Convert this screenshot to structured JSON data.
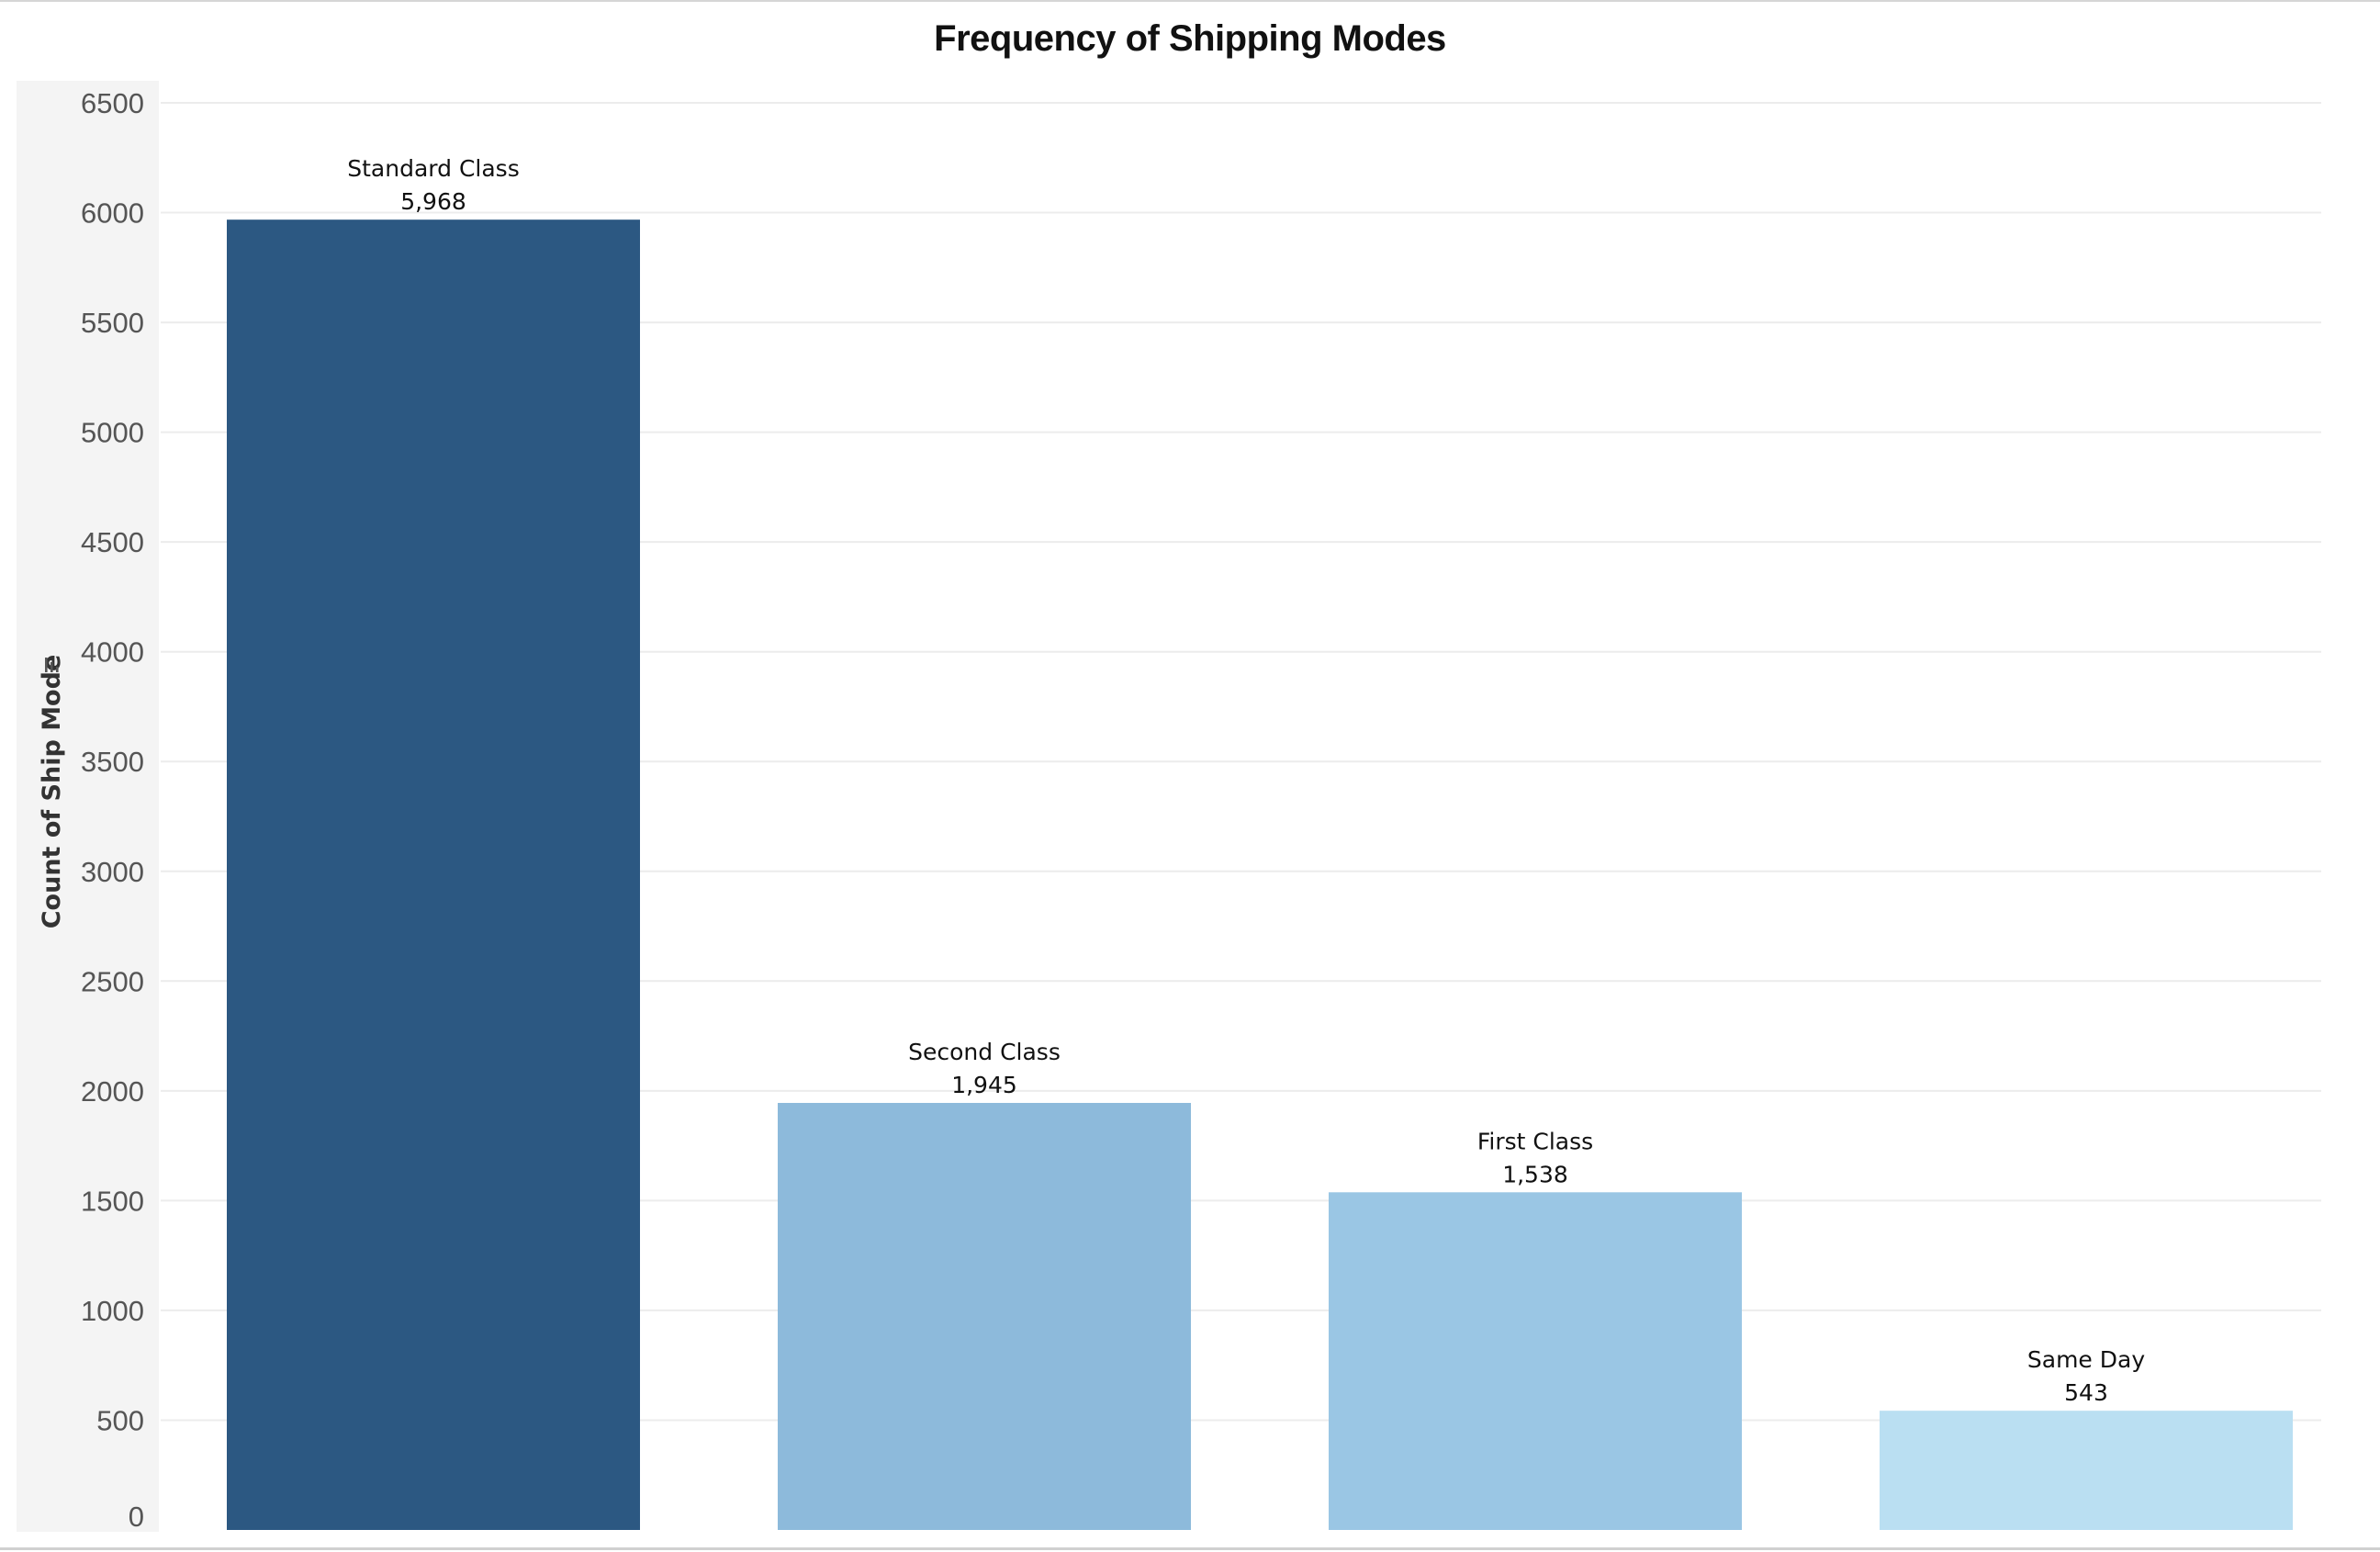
{
  "chart_data": {
    "type": "bar",
    "title": "Frequency of Shipping Modes",
    "xlabel": "",
    "ylabel": "Count of Ship Mode",
    "ylabel_icon": "sort-descending-icon",
    "categories": [
      "Standard Class",
      "Second Class",
      "First Class",
      "Same Day"
    ],
    "values": [
      5968,
      1945,
      1538,
      543
    ],
    "value_labels": [
      "5,968",
      "1,945",
      "1,538",
      "543"
    ],
    "colors": [
      "#2c5882",
      "#8dbadb",
      "#9ac6e4",
      "#badff2"
    ],
    "ylim": [
      0,
      6500
    ],
    "yticks": [
      0,
      500,
      1000,
      1500,
      2000,
      2500,
      3000,
      3500,
      4000,
      4500,
      5000,
      5500,
      6000,
      6500
    ],
    "grid": true,
    "legend": "none"
  }
}
